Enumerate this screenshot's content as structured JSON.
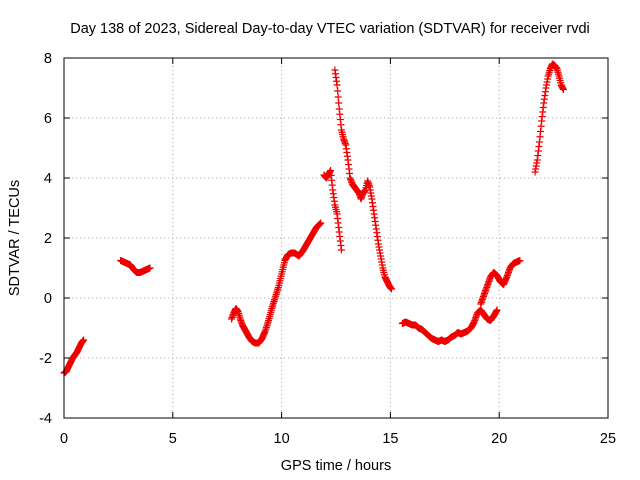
{
  "chart_data": {
    "type": "scatter",
    "title": "Day 138 of 2023, Sidereal Day-to-day VTEC variation (SDTVAR) for receiver rvdi",
    "xlabel": "GPS time / hours",
    "ylabel": "SDTVAR / TECUs",
    "xlim": [
      0,
      25
    ],
    "ylim": [
      -4,
      8
    ],
    "xticks": [
      0,
      5,
      10,
      15,
      20,
      25
    ],
    "yticks": [
      -4,
      -2,
      0,
      2,
      4,
      6,
      8
    ],
    "grid": true,
    "marker": "+",
    "color": "#ee0000",
    "segments": [
      {
        "name": "segment-1",
        "x": [
          0.0,
          0.1,
          0.2,
          0.3,
          0.4,
          0.5,
          0.6,
          0.7,
          0.8,
          0.9
        ],
        "y": [
          -2.5,
          -2.45,
          -2.3,
          -2.15,
          -2.0,
          -1.9,
          -1.8,
          -1.65,
          -1.5,
          -1.4
        ]
      },
      {
        "name": "segment-2",
        "x": [
          2.6,
          2.75,
          2.9,
          3.05,
          3.2,
          3.35,
          3.5,
          3.65,
          3.8,
          3.95
        ],
        "y": [
          1.25,
          1.2,
          1.15,
          1.1,
          0.95,
          0.85,
          0.85,
          0.9,
          0.95,
          1.0
        ]
      },
      {
        "name": "segment-3",
        "x": [
          7.7,
          7.8,
          7.9,
          8.0,
          8.1,
          8.2,
          8.35,
          8.5,
          8.65,
          8.8,
          8.95,
          9.1,
          9.25,
          9.4,
          9.55,
          9.7,
          9.85,
          10.0,
          10.15,
          10.3,
          10.45,
          10.6,
          10.8,
          11.0,
          11.2,
          11.4,
          11.6,
          11.8
        ],
        "y": [
          -0.7,
          -0.5,
          -0.35,
          -0.45,
          -0.7,
          -0.9,
          -1.1,
          -1.3,
          -1.45,
          -1.5,
          -1.5,
          -1.35,
          -1.1,
          -0.75,
          -0.35,
          0.0,
          0.35,
          0.8,
          1.25,
          1.45,
          1.5,
          1.5,
          1.4,
          1.6,
          1.85,
          2.1,
          2.35,
          2.5
        ]
      },
      {
        "name": "segment-4",
        "x": [
          11.95,
          12.05,
          12.15,
          12.25,
          12.35,
          12.45,
          12.55,
          12.65,
          12.75
        ],
        "y": [
          4.1,
          4.0,
          4.1,
          4.25,
          3.6,
          3.1,
          2.8,
          2.2,
          1.6
        ]
      },
      {
        "name": "segment-5",
        "x": [
          12.45,
          12.55,
          12.65,
          12.75,
          12.85,
          12.95,
          13.05,
          13.15,
          13.25,
          13.35,
          13.45,
          13.55,
          13.65,
          13.75,
          13.85,
          13.95,
          14.05,
          14.15,
          14.25,
          14.35,
          14.45,
          14.55,
          14.65,
          14.75,
          14.85,
          14.95,
          15.05
        ],
        "y": [
          7.6,
          7.1,
          6.3,
          5.6,
          5.3,
          5.1,
          4.6,
          4.0,
          3.8,
          3.7,
          3.6,
          3.5,
          3.3,
          3.5,
          3.6,
          3.9,
          3.7,
          3.3,
          2.8,
          2.3,
          1.8,
          1.4,
          1.0,
          0.7,
          0.55,
          0.4,
          0.3
        ]
      },
      {
        "name": "segment-6",
        "x": [
          15.55,
          15.7,
          15.85,
          16.0,
          16.15,
          16.3,
          16.45,
          16.6,
          16.75,
          16.9,
          17.05,
          17.2,
          17.35,
          17.5,
          17.65,
          17.8,
          17.95,
          18.1,
          18.25,
          18.4,
          18.55,
          18.7,
          18.85,
          19.0,
          19.15,
          19.3,
          19.45,
          19.6,
          19.75,
          19.9
        ],
        "y": [
          -0.85,
          -0.8,
          -0.85,
          -0.9,
          -0.9,
          -1.0,
          -1.05,
          -1.15,
          -1.25,
          -1.35,
          -1.4,
          -1.45,
          -1.4,
          -1.45,
          -1.4,
          -1.3,
          -1.25,
          -1.15,
          -1.2,
          -1.15,
          -1.1,
          -1.0,
          -0.8,
          -0.5,
          -0.4,
          -0.55,
          -0.7,
          -0.75,
          -0.6,
          -0.4
        ]
      },
      {
        "name": "segment-7",
        "x": [
          19.15,
          19.3,
          19.45,
          19.6,
          19.75,
          19.9,
          20.05,
          20.2,
          20.35,
          20.5,
          20.65,
          20.8,
          20.95
        ],
        "y": [
          -0.2,
          0.1,
          0.4,
          0.7,
          0.85,
          0.75,
          0.55,
          0.45,
          0.7,
          1.0,
          1.15,
          1.2,
          1.25
        ]
      },
      {
        "name": "segment-8",
        "x": [
          21.65,
          21.75,
          21.85,
          21.95,
          22.05,
          22.15,
          22.25,
          22.35,
          22.45,
          22.55,
          22.65,
          22.75,
          22.85,
          22.95
        ],
        "y": [
          4.2,
          4.6,
          5.2,
          5.9,
          6.5,
          7.0,
          7.4,
          7.65,
          7.8,
          7.75,
          7.65,
          7.4,
          7.1,
          6.95
        ]
      }
    ]
  }
}
